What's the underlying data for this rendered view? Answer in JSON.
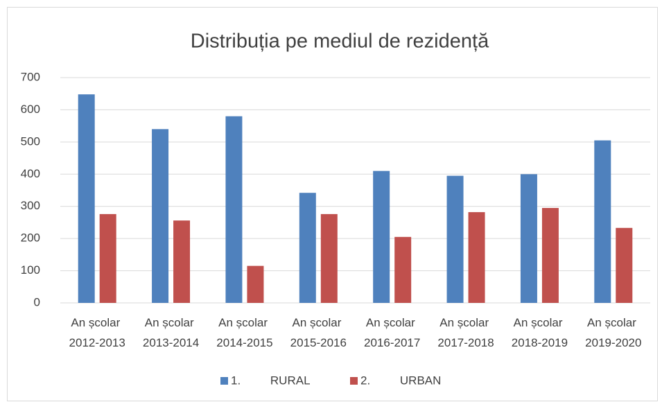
{
  "chart_data": {
    "type": "bar",
    "title": "Distribuția pe mediul de rezidență",
    "categories": [
      "An școlar 2012-2013",
      "An școlar 2013-2014",
      "An școlar 2014-2015",
      "An școlar 2015-2016",
      "An școlar 2016-2017",
      "An școlar 2017-2018",
      "An școlar 2018-2019",
      "An școlar 2019-2020"
    ],
    "series": [
      {
        "name": "1. RURAL",
        "color": "#4f81bd",
        "values": [
          648,
          540,
          580,
          342,
          410,
          395,
          400,
          505
        ]
      },
      {
        "name": "2. URBAN",
        "color": "#c0504d",
        "values": [
          276,
          256,
          115,
          276,
          205,
          282,
          295,
          233
        ]
      }
    ],
    "ylim": [
      0,
      700
    ],
    "yticks": [
      0,
      100,
      200,
      300,
      400,
      500,
      600,
      700
    ],
    "grid": true,
    "legend": "bottom"
  }
}
